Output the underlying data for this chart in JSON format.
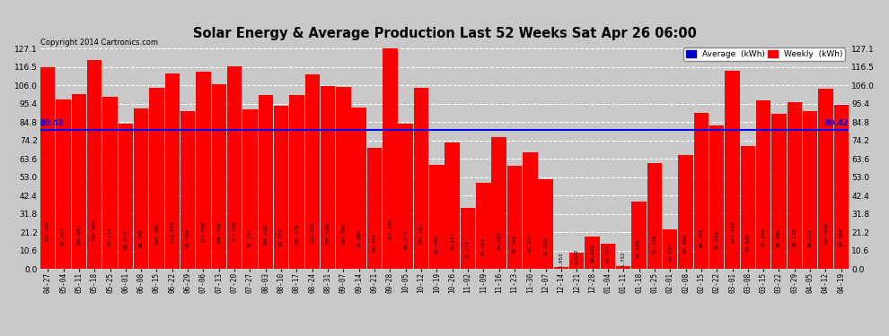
{
  "title": "Solar Energy & Average Production Last 52 Weeks Sat Apr 26 06:00",
  "copyright": "Copyright 2014 Cartronics.com",
  "average_line": 80.415,
  "bar_color": "#FF0000",
  "average_line_color": "#0000FF",
  "background_color": "#C8C8C8",
  "plot_bg_color": "#C8C8C8",
  "grid_color": "#FFFFFF",
  "ylim": [
    0,
    130
  ],
  "yticks": [
    0.0,
    10.6,
    21.2,
    31.8,
    42.4,
    53.0,
    63.6,
    74.2,
    84.8,
    95.4,
    106.0,
    116.5,
    127.1
  ],
  "legend_average_color": "#0000CD",
  "legend_weekly_color": "#FF0000",
  "categories": [
    "04-27",
    "05-04",
    "05-11",
    "05-18",
    "05-25",
    "06-01",
    "06-08",
    "06-15",
    "06-22",
    "06-29",
    "07-06",
    "07-13",
    "07-20",
    "07-27",
    "08-03",
    "08-10",
    "08-17",
    "08-24",
    "08-31",
    "09-07",
    "09-14",
    "09-21",
    "09-28",
    "10-05",
    "10-12",
    "10-19",
    "10-26",
    "11-02",
    "11-09",
    "11-16",
    "11-23",
    "11-30",
    "12-07",
    "12-14",
    "12-21",
    "12-28",
    "01-04",
    "01-11",
    "01-18",
    "01-25",
    "02-01",
    "02-08",
    "02-15",
    "02-22",
    "03-01",
    "03-08",
    "03-15",
    "03-22",
    "03-29",
    "04-05",
    "04-12",
    "04-19"
  ],
  "values": [
    116.526,
    97.614,
    100.664,
    120.582,
    99.112,
    83.644,
    92.546,
    104.406,
    112.9,
    91.29,
    113.79,
    106.468,
    117.092,
    92.224,
    100.436,
    94.222,
    100.576,
    112.301,
    105.609,
    104.966,
    92.884,
    69.724,
    127.14,
    83.579,
    104.283,
    60.093,
    73.137,
    35.137,
    49.463,
    75.968,
    59.302,
    67.374,
    51.82,
    1.053,
    9.092,
    18.885,
    14.364,
    1.752,
    38.62,
    61.228,
    22.832,
    65.964,
    90.104,
    82.856,
    114.528,
    70.84,
    97.302,
    89.596,
    96.12,
    90.912,
    104.028,
    94.65
  ]
}
